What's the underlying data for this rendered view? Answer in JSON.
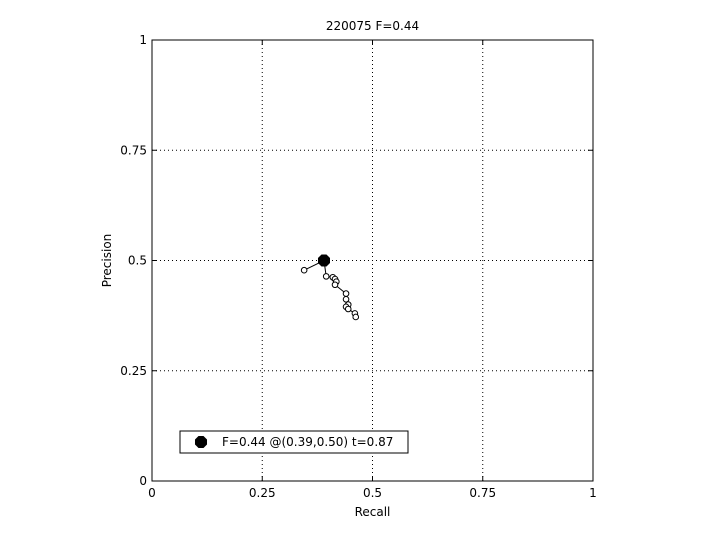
{
  "chart_data": {
    "type": "scatter",
    "title": "220075 F=0.44",
    "xlabel": "Recall",
    "ylabel": "Precision",
    "xlim": [
      0,
      1
    ],
    "ylim": [
      0,
      1
    ],
    "xticks": [
      0,
      0.25,
      0.5,
      0.75,
      1
    ],
    "yticks": [
      0,
      0.25,
      0.5,
      0.75,
      1
    ],
    "xtick_labels": [
      "0",
      "0.25",
      "0.5",
      "0.75",
      "1"
    ],
    "ytick_labels": [
      "0",
      "0.25",
      "0.5",
      "0.75",
      "1"
    ],
    "grid": true,
    "legend_position": "bottom-left",
    "legend_label": "F=0.44 @(0.39,0.50) t=0.87",
    "best_point": {
      "x": 0.39,
      "y": 0.5
    },
    "series": [
      {
        "points": [
          [
            0.345,
            0.478
          ],
          [
            0.39,
            0.5
          ],
          [
            0.395,
            0.464
          ],
          [
            0.41,
            0.462
          ],
          [
            0.415,
            0.458
          ],
          [
            0.418,
            0.452
          ],
          [
            0.415,
            0.445
          ],
          [
            0.44,
            0.425
          ],
          [
            0.44,
            0.412
          ],
          [
            0.445,
            0.4
          ],
          [
            0.44,
            0.395
          ],
          [
            0.445,
            0.39
          ],
          [
            0.46,
            0.38
          ],
          [
            0.462,
            0.372
          ]
        ]
      }
    ]
  }
}
